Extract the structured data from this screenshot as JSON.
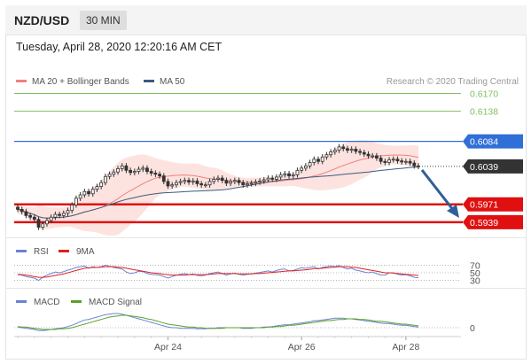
{
  "header": {
    "symbol": "NZD/USD",
    "timeframe": "30 MIN",
    "datetime": "Tuesday, April 28, 2020 12:20:16 AM CET"
  },
  "credit": "Research © 2020 Trading Central",
  "colors": {
    "candle": "#333333",
    "ma20": "#f08080",
    "bollinger_fill": "#fde0dc",
    "ma50": "#3d5a80",
    "green_level": "#7fbf5f",
    "blue_level": "#2f6fd6",
    "red_level": "#e01010",
    "arrow": "#2f5f9a",
    "rsi": "#6a82d4",
    "rsi_ma": "#e02020",
    "macd": "#6a82d4",
    "macd_signal": "#5aa02a"
  },
  "chart_data": [
    {
      "type": "candlestick",
      "legend": [
        {
          "name": "MA 20 + Bollinger Bands",
          "color": "#f08080"
        },
        {
          "name": "MA 50",
          "color": "#3d5a80"
        }
      ],
      "x_ticks": [
        "Apr 24",
        "Apr 26",
        "Apr 28"
      ],
      "ylim": [
        0.5915,
        0.6185
      ],
      "levels": [
        {
          "label": "0.6170",
          "value": 0.617,
          "kind": "resistance",
          "color": "#7fbf5f"
        },
        {
          "label": "0.6138",
          "value": 0.6138,
          "kind": "resistance",
          "color": "#7fbf5f"
        },
        {
          "label": "0.6084",
          "value": 0.6084,
          "kind": "pivot",
          "color": "#2f6fd6"
        },
        {
          "label": "0.6039",
          "value": 0.6039,
          "kind": "last",
          "color": "#333333"
        },
        {
          "label": "0.5971",
          "value": 0.5971,
          "kind": "support",
          "color": "#e01010"
        },
        {
          "label": "0.5939",
          "value": 0.5939,
          "kind": "support",
          "color": "#e01010"
        }
      ],
      "close": [
        0.5962,
        0.5958,
        0.5951,
        0.5948,
        0.5944,
        0.593,
        0.5936,
        0.5942,
        0.5948,
        0.5953,
        0.5951,
        0.5955,
        0.596,
        0.597,
        0.5982,
        0.5988,
        0.5994,
        0.599,
        0.5998,
        0.6003,
        0.601,
        0.6021,
        0.6025,
        0.6029,
        0.6035,
        0.604,
        0.6032,
        0.6028,
        0.603,
        0.6034,
        0.6036,
        0.603,
        0.6027,
        0.6025,
        0.6022,
        0.6012,
        0.6004,
        0.6006,
        0.601,
        0.6012,
        0.6014,
        0.6011,
        0.6013,
        0.6008,
        0.6006,
        0.6006,
        0.6012,
        0.6016,
        0.6018,
        0.6014,
        0.6009,
        0.6012,
        0.6014,
        0.601,
        0.6006,
        0.6008,
        0.6009,
        0.6011,
        0.6013,
        0.6015,
        0.6018,
        0.6016,
        0.602,
        0.6024,
        0.6026,
        0.6022,
        0.6024,
        0.6032,
        0.6036,
        0.604,
        0.6046,
        0.6052,
        0.6048,
        0.6056,
        0.606,
        0.6065,
        0.6068,
        0.6074,
        0.6071,
        0.6068,
        0.607,
        0.6066,
        0.6064,
        0.6061,
        0.6058,
        0.6058,
        0.6054,
        0.6048,
        0.6046,
        0.6051,
        0.6052,
        0.6049,
        0.6047,
        0.6048,
        0.6045,
        0.604,
        0.6039
      ],
      "x_tick_index": [
        36,
        68,
        93
      ]
    },
    {
      "type": "line",
      "legend": [
        {
          "name": "RSI",
          "color": "#6a82d4"
        },
        {
          "name": "9MA",
          "color": "#e02020"
        }
      ],
      "y_ticks": [
        "70",
        "50",
        "30"
      ],
      "ylim": [
        15,
        85
      ],
      "series": [
        {
          "name": "RSI",
          "values": [
            45,
            44,
            40,
            38,
            36,
            30,
            38,
            44,
            48,
            52,
            50,
            53,
            57,
            60,
            64,
            66,
            68,
            62,
            66,
            64,
            66,
            70,
            67,
            64,
            62,
            60,
            52,
            48,
            50,
            54,
            53,
            48,
            46,
            45,
            44,
            40,
            36,
            40,
            44,
            46,
            48,
            45,
            47,
            43,
            42,
            44,
            48,
            50,
            52,
            48,
            44,
            47,
            49,
            46,
            44,
            46,
            47,
            49,
            51,
            53,
            55,
            52,
            56,
            59,
            60,
            55,
            56,
            60,
            63,
            62,
            64,
            66,
            60,
            64,
            66,
            68,
            66,
            69,
            64,
            60,
            62,
            57,
            55,
            52,
            50,
            52,
            48,
            44,
            44,
            50,
            50,
            46,
            44,
            45,
            42,
            38,
            37
          ]
        },
        {
          "name": "9MA",
          "values": [
            46,
            45,
            44,
            42,
            40,
            38,
            38,
            39,
            41,
            43,
            45,
            47,
            50,
            53,
            56,
            59,
            62,
            63,
            64,
            64,
            65,
            66,
            66,
            66,
            65,
            64,
            62,
            60,
            58,
            56,
            54,
            52,
            50,
            49,
            48,
            46,
            45,
            44,
            44,
            44,
            44,
            45,
            45,
            45,
            45,
            45,
            46,
            47,
            48,
            48,
            48,
            48,
            48,
            47,
            47,
            47,
            47,
            48,
            48,
            49,
            50,
            51,
            52,
            53,
            54,
            55,
            55,
            56,
            57,
            58,
            59,
            61,
            61,
            62,
            63,
            64,
            65,
            66,
            66,
            66,
            65,
            64,
            62,
            60,
            58,
            56,
            54,
            52,
            50,
            50,
            49,
            48,
            47,
            46,
            45,
            44,
            43
          ]
        }
      ]
    },
    {
      "type": "line",
      "legend": [
        {
          "name": "MACD",
          "color": "#6a82d4"
        },
        {
          "name": "MACD Signal",
          "color": "#5aa02a"
        }
      ],
      "y_ticks": [
        "0"
      ],
      "ylim": [
        -0.0012,
        0.003
      ],
      "series": [
        {
          "name": "MACD",
          "values": [
            0.0001,
            0.0,
            -0.0001,
            -0.0002,
            -0.0003,
            -0.0005,
            -0.0005,
            -0.0004,
            -0.0003,
            -0.0002,
            -0.0001,
            0.0,
            0.0002,
            0.0004,
            0.0007,
            0.001,
            0.0013,
            0.0014,
            0.0016,
            0.0018,
            0.002,
            0.0022,
            0.0023,
            0.0024,
            0.0024,
            0.0023,
            0.0021,
            0.0019,
            0.0017,
            0.0015,
            0.0013,
            0.0011,
            0.0009,
            0.0007,
            0.0005,
            0.0003,
            0.0001,
            0.0,
            0.0,
            -0.0001,
            -0.0001,
            -0.0001,
            -0.0001,
            -0.0002,
            -0.0002,
            -0.0002,
            -0.0001,
            -0.0001,
            0.0,
            0.0,
            0.0,
            0.0,
            0.0,
            0.0,
            -0.0001,
            -0.0001,
            -0.0001,
            0.0,
            0.0,
            0.0001,
            0.0001,
            0.0002,
            0.0003,
            0.0004,
            0.0005,
            0.0005,
            0.0006,
            0.0007,
            0.0008,
            0.0009,
            0.001,
            0.0012,
            0.0012,
            0.0013,
            0.0014,
            0.0015,
            0.0016,
            0.0016,
            0.0016,
            0.0015,
            0.0015,
            0.0014,
            0.0013,
            0.0012,
            0.0011,
            0.001,
            0.0009,
            0.0008,
            0.0007,
            0.0007,
            0.0006,
            0.0005,
            0.0004,
            0.0004,
            0.0003,
            0.0002,
            0.0001
          ]
        },
        {
          "name": "MACD Signal",
          "values": [
            0.0002,
            0.0001,
            0.0001,
            0.0,
            -0.0001,
            -0.0002,
            -0.0003,
            -0.0003,
            -0.0003,
            -0.0003,
            -0.0002,
            -0.0002,
            -0.0001,
            0.0,
            0.0002,
            0.0004,
            0.0006,
            0.0008,
            0.001,
            0.0012,
            0.0014,
            0.0016,
            0.0018,
            0.0019,
            0.002,
            0.0021,
            0.0021,
            0.002,
            0.0019,
            0.0018,
            0.0017,
            0.0015,
            0.0014,
            0.0012,
            0.001,
            0.0008,
            0.0006,
            0.0005,
            0.0004,
            0.0003,
            0.0002,
            0.0001,
            0.0001,
            0.0,
            0.0,
            -0.0001,
            -0.0001,
            -0.0001,
            -0.0001,
            -0.0001,
            0.0,
            0.0,
            0.0,
            0.0,
            0.0,
            0.0,
            0.0,
            0.0,
            0.0,
            0.0,
            0.0001,
            0.0001,
            0.0002,
            0.0002,
            0.0003,
            0.0004,
            0.0004,
            0.0005,
            0.0006,
            0.0007,
            0.0008,
            0.0009,
            0.001,
            0.0011,
            0.0012,
            0.0012,
            0.0013,
            0.0014,
            0.0014,
            0.0015,
            0.0015,
            0.0015,
            0.0014,
            0.0014,
            0.0013,
            0.0012,
            0.0011,
            0.0011,
            0.001,
            0.0009,
            0.0008,
            0.0007,
            0.0006,
            0.0006,
            0.0005,
            0.0004,
            0.0003
          ]
        }
      ]
    }
  ]
}
